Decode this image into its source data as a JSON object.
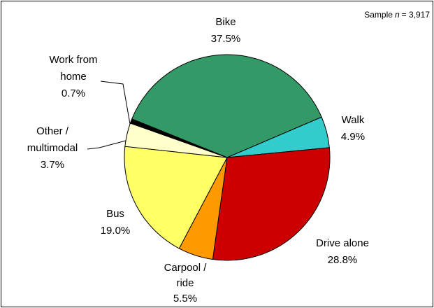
{
  "chart_data": {
    "type": "pie",
    "categories": [
      "Bike",
      "Walk",
      "Drive alone",
      "Carpool / ride",
      "Bus",
      "Other / multimodal",
      "Work from home"
    ],
    "values": [
      37.5,
      4.9,
      28.8,
      5.5,
      19.0,
      3.7,
      0.7
    ],
    "value_labels": [
      "37.5%",
      "4.9%",
      "28.8%",
      "5.5%",
      "19.0%",
      "3.7%",
      "0.7%"
    ],
    "colors": [
      "#339966",
      "#33cccc",
      "#cc0000",
      "#ff9900",
      "#ffff66",
      "#ffffcc",
      "#000000"
    ],
    "annotation": {
      "prefix": "Sample",
      "variable": "n",
      "suffix": "= 3,917"
    }
  }
}
